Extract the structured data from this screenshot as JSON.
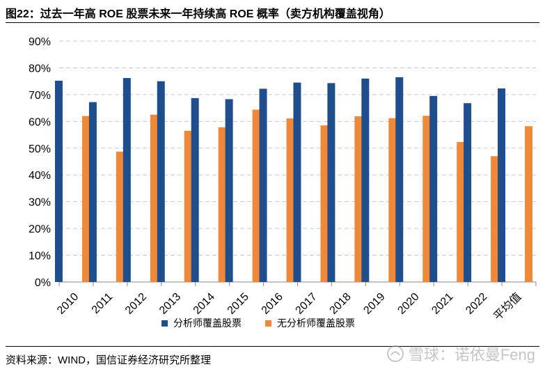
{
  "title": "图22：过去一年高 ROE 股票未来一年持续高 ROE 概率（卖方机构覆盖视角）",
  "source": "资料来源：WIND，国信证券经济研究所整理",
  "watermark": "雪球：诺依曼Feng",
  "colors": {
    "covered": "#1f4e8c",
    "uncovered": "#f0883a",
    "grid": "#c8c8c8"
  },
  "chart_data": {
    "type": "bar",
    "categories": [
      "2010",
      "2011",
      "2012",
      "2013",
      "2014",
      "2015",
      "2016",
      "2017",
      "2018",
      "2019",
      "2020",
      "2021",
      "2022",
      "平均值"
    ],
    "series": [
      {
        "name": "分析师覆盖股票",
        "values": [
          75.2,
          67.2,
          76.2,
          75.0,
          68.7,
          68.3,
          72.2,
          74.5,
          74.3,
          76.0,
          76.5,
          69.5,
          66.8,
          72.3
        ]
      },
      {
        "name": "无分析师覆盖股票",
        "values": [
          62.0,
          48.7,
          62.5,
          56.5,
          57.8,
          64.4,
          61.1,
          58.5,
          61.9,
          61.2,
          62.1,
          52.3,
          47.0,
          58.2
        ]
      }
    ],
    "yticks": [
      "0%",
      "10%",
      "20%",
      "30%",
      "40%",
      "50%",
      "60%",
      "70%",
      "80%",
      "90%"
    ],
    "ylim": [
      0,
      90
    ],
    "xlabel": "",
    "ylabel": "",
    "grid": true,
    "legend": "bottom"
  }
}
